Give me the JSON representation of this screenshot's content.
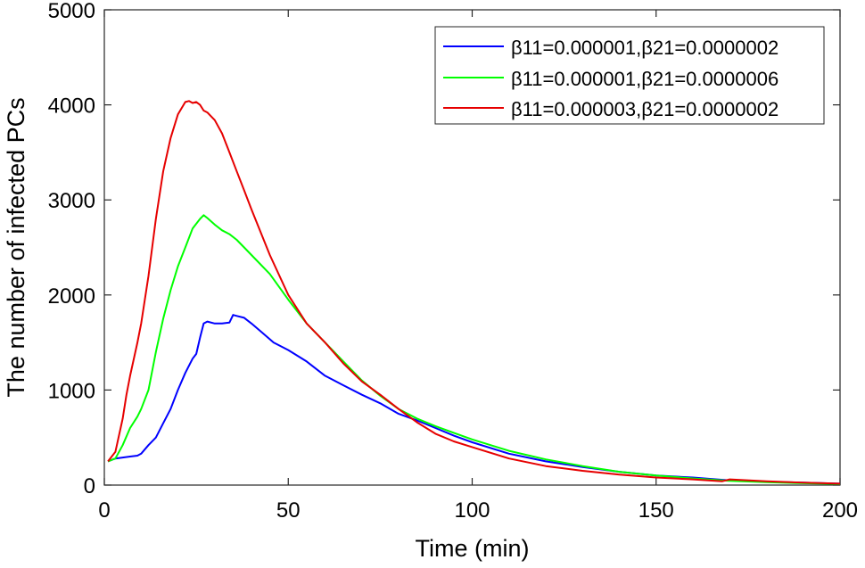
{
  "chart_data": {
    "type": "line",
    "title": "",
    "xlabel": "Time (min)",
    "ylabel": "The number of infected PCs",
    "xlim": [
      0,
      200
    ],
    "ylim": [
      0,
      5000
    ],
    "xticks": [
      0,
      50,
      100,
      150,
      200
    ],
    "yticks": [
      0,
      1000,
      2000,
      3000,
      4000,
      5000
    ],
    "grid": false,
    "legend_position": "top-right",
    "series": [
      {
        "name": "β11=0.000001,β21=0.0000002",
        "color": "#0000ff",
        "x": [
          1,
          3,
          5,
          7,
          9,
          10,
          12,
          14,
          16,
          18,
          20,
          22,
          24,
          25,
          26,
          27,
          28,
          30,
          32,
          34,
          35,
          36,
          38,
          40,
          43,
          46,
          50,
          55,
          60,
          65,
          70,
          75,
          80,
          85,
          90,
          95,
          100,
          110,
          120,
          130,
          140,
          150,
          160,
          170,
          180,
          190,
          200
        ],
        "y": [
          250,
          280,
          290,
          300,
          310,
          330,
          420,
          500,
          650,
          800,
          1000,
          1180,
          1330,
          1380,
          1550,
          1700,
          1720,
          1700,
          1700,
          1710,
          1790,
          1780,
          1760,
          1700,
          1600,
          1500,
          1420,
          1300,
          1150,
          1050,
          950,
          860,
          750,
          680,
          600,
          520,
          450,
          330,
          250,
          190,
          140,
          100,
          80,
          50,
          35,
          25,
          15
        ]
      },
      {
        "name": "β11=0.000001,β21=0.0000006",
        "color": "#00ff00",
        "x": [
          1,
          3,
          5,
          7,
          9,
          10,
          12,
          14,
          16,
          18,
          20,
          22,
          24,
          26,
          27,
          28,
          30,
          32,
          34,
          36,
          38,
          40,
          45,
          50,
          55,
          60,
          65,
          70,
          75,
          80,
          85,
          90,
          95,
          100,
          110,
          120,
          130,
          140,
          150,
          160,
          170,
          180,
          190,
          200
        ],
        "y": [
          250,
          280,
          420,
          600,
          720,
          800,
          1000,
          1400,
          1750,
          2050,
          2300,
          2500,
          2700,
          2800,
          2840,
          2810,
          2740,
          2680,
          2640,
          2580,
          2500,
          2420,
          2220,
          1950,
          1700,
          1500,
          1300,
          1100,
          940,
          800,
          700,
          620,
          550,
          480,
          360,
          270,
          200,
          140,
          100,
          70,
          45,
          30,
          20,
          12
        ]
      },
      {
        "name": "β11=0.000003,β21=0.0000002",
        "color": "#e60000",
        "x": [
          1,
          3,
          5,
          6,
          7,
          9,
          10,
          12,
          14,
          16,
          18,
          20,
          22,
          23,
          24,
          25,
          26,
          27,
          28,
          30,
          32,
          34,
          36,
          38,
          40,
          45,
          50,
          55,
          60,
          65,
          70,
          75,
          80,
          85,
          90,
          95,
          100,
          110,
          120,
          130,
          140,
          150,
          160,
          168,
          170,
          180,
          190,
          200
        ],
        "y": [
          250,
          350,
          700,
          950,
          1150,
          1500,
          1700,
          2200,
          2800,
          3300,
          3650,
          3900,
          4030,
          4040,
          4020,
          4030,
          4000,
          3940,
          3920,
          3840,
          3700,
          3500,
          3300,
          3100,
          2900,
          2420,
          2000,
          1700,
          1500,
          1280,
          1090,
          950,
          800,
          660,
          540,
          460,
          400,
          280,
          200,
          150,
          110,
          80,
          60,
          40,
          60,
          40,
          25,
          15
        ]
      }
    ]
  }
}
